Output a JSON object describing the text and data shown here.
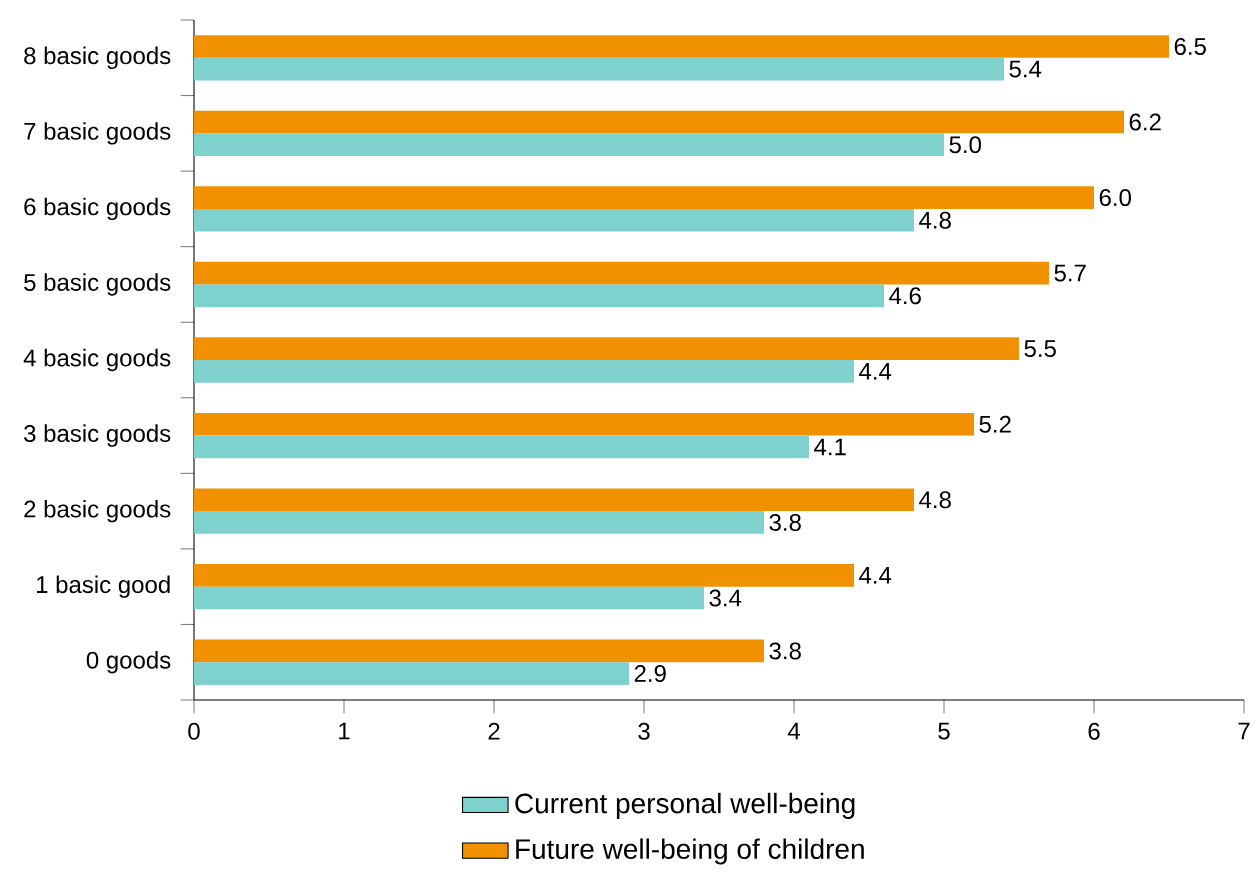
{
  "chart_data": {
    "type": "bar",
    "orientation": "horizontal",
    "categories": [
      "8 basic goods",
      "7 basic goods",
      "6 basic goods",
      "5 basic goods",
      "4 basic goods",
      "3 basic goods",
      "2 basic goods",
      "1 basic good",
      "0 goods"
    ],
    "series": [
      {
        "name": "Current personal well-being",
        "color": "#7fd1cd",
        "values": [
          5.4,
          5.0,
          4.8,
          4.6,
          4.4,
          4.1,
          3.8,
          3.4,
          2.9
        ],
        "value_labels": [
          "5.4",
          "5.0",
          "4.8",
          "4.6",
          "4.4",
          "4.1",
          "3.8",
          "3.4",
          "2.9"
        ]
      },
      {
        "name": "Future well-being of children",
        "color": "#f29100",
        "values": [
          6.5,
          6.2,
          6.0,
          5.7,
          5.5,
          5.2,
          4.8,
          4.4,
          3.8
        ],
        "value_labels": [
          "6.5",
          "6.2",
          "6.0",
          "5.7",
          "5.5",
          "5.2",
          "4.8",
          "4.4",
          "3.8"
        ]
      }
    ],
    "xlim": [
      0,
      7
    ],
    "xticks": [
      0,
      1,
      2,
      3,
      4,
      5,
      6,
      7
    ],
    "grid": false,
    "legend": "bottom"
  }
}
